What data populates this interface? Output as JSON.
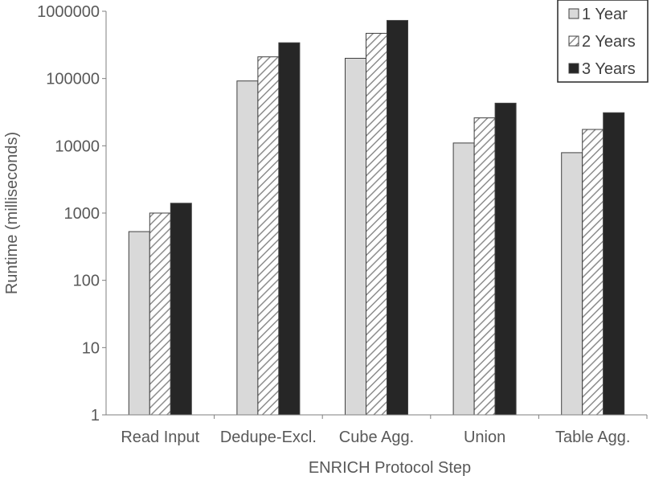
{
  "chart_data": {
    "type": "bar",
    "title": "",
    "xlabel": "ENRICH Protocol Step",
    "ylabel": "Runtime (milliseconds)",
    "y_scale": "log",
    "ylim": [
      1,
      1000000
    ],
    "y_ticks": [
      1,
      10,
      100,
      1000,
      10000,
      100000,
      1000000
    ],
    "y_tick_labels": [
      "1",
      "10",
      "100",
      "1000",
      "10000",
      "100000",
      "1000000"
    ],
    "grid": false,
    "legend_position": "top-right",
    "categories": [
      "Read Input",
      "Dedupe-Excl.",
      "Cube Agg.",
      "Union",
      "Table Agg."
    ],
    "series": [
      {
        "name": "1 Year",
        "fill": "#d9d9d9",
        "pattern": "solid",
        "values": [
          530,
          92000,
          200000,
          11000,
          7900
        ]
      },
      {
        "name": "2 Years",
        "fill": "#ffffff",
        "pattern": "diagonal-hatch",
        "values": [
          1000,
          210000,
          470000,
          26000,
          17500
        ]
      },
      {
        "name": "3 Years",
        "fill": "#262626",
        "pattern": "solid",
        "values": [
          1400,
          340000,
          730000,
          43000,
          31000
        ]
      }
    ]
  }
}
